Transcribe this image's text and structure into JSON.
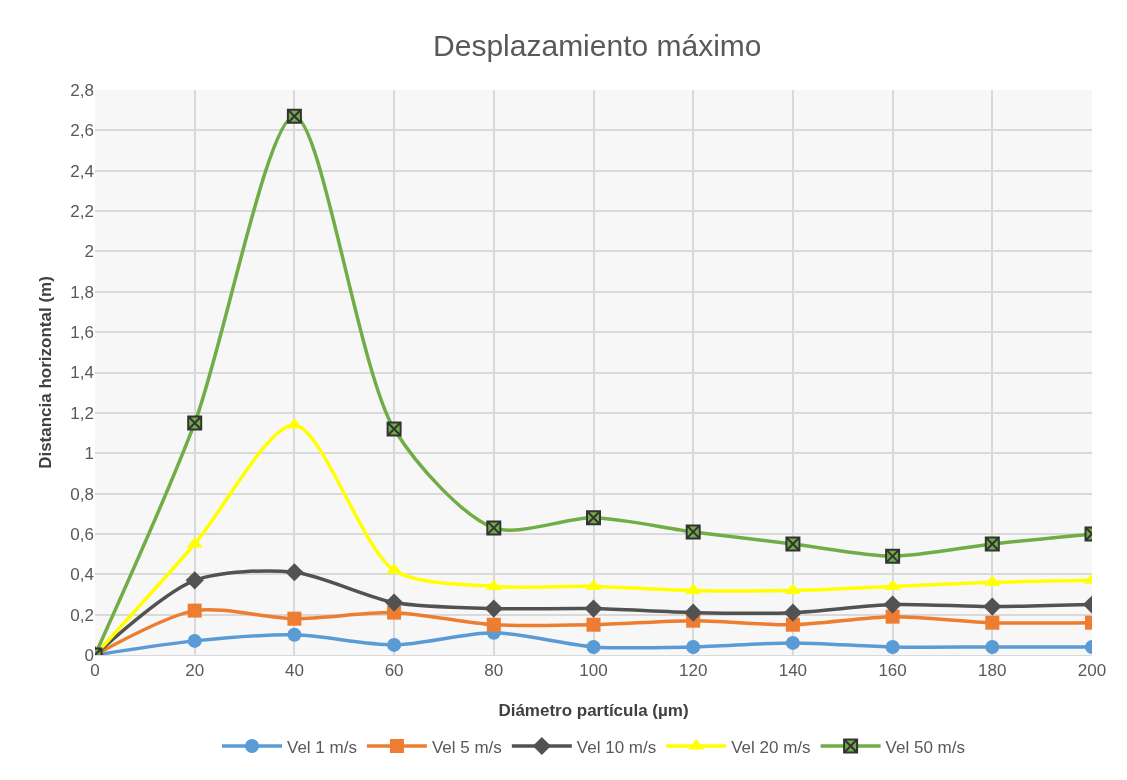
{
  "chart_data": {
    "type": "line",
    "title": "Desplazamiento máximo",
    "xlabel": "Diámetro partícula (µm)",
    "ylabel": "Distancia horizontal (m)",
    "x": [
      0,
      20,
      40,
      60,
      80,
      100,
      120,
      140,
      160,
      180,
      200
    ],
    "xlim": [
      0,
      200
    ],
    "xticks": [
      0,
      20,
      40,
      60,
      80,
      100,
      120,
      140,
      160,
      180,
      200
    ],
    "ylim": [
      0,
      2.8
    ],
    "yticks": [
      0,
      {
        "value": 0.2,
        "label": "0,2"
      },
      {
        "value": 0.4,
        "label": "0,4"
      },
      {
        "value": 0.6,
        "label": "0,6"
      },
      {
        "value": 0.8,
        "label": "0,8"
      },
      1,
      {
        "value": 1.2,
        "label": "1,2"
      },
      {
        "value": 1.4,
        "label": "1,4"
      },
      {
        "value": 1.6,
        "label": "1,6"
      },
      {
        "value": 1.8,
        "label": "1,8"
      },
      2,
      {
        "value": 2.2,
        "label": "2,2"
      },
      {
        "value": 2.4,
        "label": "2,4"
      },
      {
        "value": 2.6,
        "label": "2,6"
      },
      {
        "value": 2.8,
        "label": "2,8"
      }
    ],
    "grid": true,
    "legend": "bottom",
    "line_style": "solid",
    "series": [
      {
        "name": "Vel 1 m/s",
        "color": "#5b9bd5",
        "marker": "circle",
        "values": [
          0,
          0.07,
          0.1,
          0.05,
          0.11,
          0.04,
          0.04,
          0.06,
          0.04,
          0.04,
          0.04
        ]
      },
      {
        "name": "Vel 5 m/s",
        "color": "#ed7d31",
        "marker": "square",
        "values": [
          0,
          0.22,
          0.18,
          0.21,
          0.15,
          0.15,
          0.17,
          0.15,
          0.19,
          0.16,
          0.16
        ]
      },
      {
        "name": "Vel 10 m/s",
        "color": "#525252",
        "marker": "diamond",
        "values": [
          0,
          0.37,
          0.41,
          0.26,
          0.23,
          0.23,
          0.21,
          0.21,
          0.25,
          0.24,
          0.25
        ]
      },
      {
        "name": "Vel 20 m/s",
        "color": "#ffff00",
        "marker": "triangle",
        "values": [
          0,
          0.55,
          1.14,
          0.42,
          0.34,
          0.34,
          0.32,
          0.32,
          0.34,
          0.36,
          0.37
        ]
      },
      {
        "name": "Vel 50 m/s",
        "color": "#70ad47",
        "marker": "cross",
        "values": [
          0,
          1.15,
          2.67,
          1.12,
          0.63,
          0.68,
          0.61,
          0.55,
          0.49,
          0.55,
          0.6
        ]
      }
    ]
  }
}
